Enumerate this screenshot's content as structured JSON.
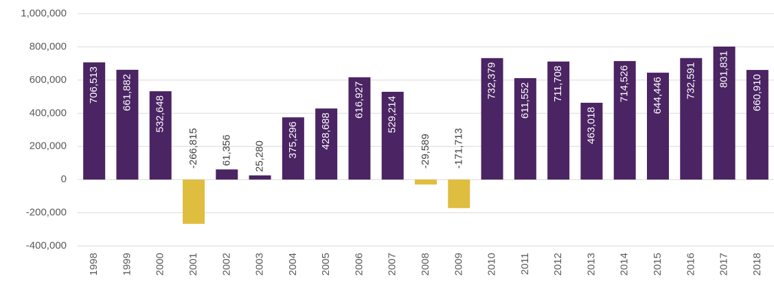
{
  "chart_data": {
    "type": "bar",
    "categories": [
      "1998",
      "1999",
      "2000",
      "2001",
      "2002",
      "2003",
      "2004",
      "2005",
      "2006",
      "2007",
      "2008",
      "2009",
      "2010",
      "2011",
      "2012",
      "2013",
      "2014",
      "2015",
      "2016",
      "2017",
      "2018"
    ],
    "values": [
      706513,
      661882,
      532648,
      -266815,
      61356,
      25280,
      375296,
      428688,
      616927,
      529214,
      -29589,
      -171713,
      732379,
      611552,
      711708,
      463018,
      714526,
      644446,
      732591,
      801831,
      660910
    ],
    "value_labels": [
      "706,513",
      "661,882",
      "532,648",
      "-266,815",
      "61,356",
      "25,280",
      "375,296",
      "428,688",
      "616,927",
      "529,214",
      "-29,589",
      "-171,713",
      "732,379",
      "611,552",
      "711,708",
      "463,018",
      "714,526",
      "644,446",
      "732,591",
      "801,831",
      "660,910"
    ],
    "color": "#4b2463",
    "negative_color": "#dfbd3f",
    "ylim": [
      -400000,
      1000000
    ],
    "yticks": [
      {
        "value": -400000,
        "label": "-400,000"
      },
      {
        "value": -200000,
        "label": "-200,000"
      },
      0,
      {
        "value": 200000,
        "label": "200,000"
      },
      {
        "value": 400000,
        "label": "400,000"
      },
      {
        "value": 600000,
        "label": "600,000"
      },
      {
        "value": 800000,
        "label": "800,000"
      },
      {
        "value": 1000000,
        "label": "1,000,000"
      }
    ],
    "grid": true
  }
}
